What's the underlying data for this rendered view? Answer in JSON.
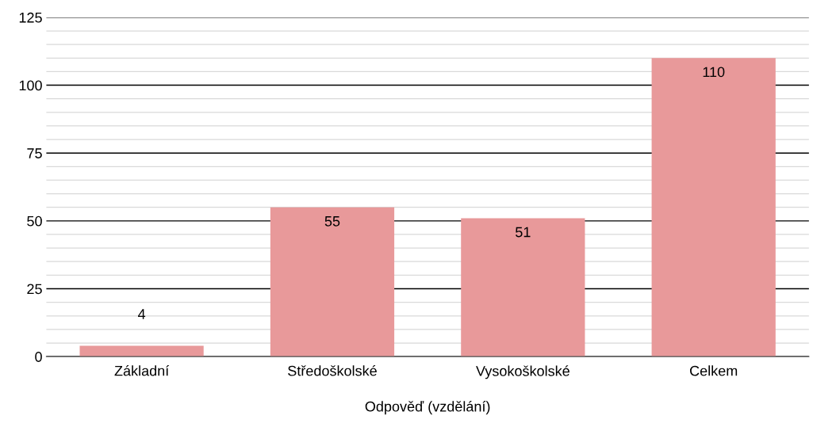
{
  "chart_data": {
    "type": "bar",
    "xlabel": "Odpověď (vzdělání)",
    "categories": [
      "Základní",
      "Středoškolské",
      "Vysokoškolské",
      "Celkem"
    ],
    "values": [
      4,
      55,
      51,
      110
    ],
    "color": "#e8999a",
    "data_labels": true,
    "ylim": [
      0,
      125
    ],
    "yticks": [
      0,
      {
        "value": 5,
        "label": null
      },
      {
        "value": 10,
        "label": null
      },
      {
        "value": 15,
        "label": null
      },
      {
        "value": 20,
        "label": null
      },
      25,
      {
        "value": 30,
        "label": null
      },
      {
        "value": 35,
        "label": null
      },
      {
        "value": 40,
        "label": null
      },
      {
        "value": 45,
        "label": null
      },
      50,
      {
        "value": 55,
        "label": null
      },
      {
        "value": 60,
        "label": null
      },
      {
        "value": 65,
        "label": null
      },
      {
        "value": 70,
        "label": null
      },
      75,
      {
        "value": 80,
        "label": null
      },
      {
        "value": 85,
        "label": null
      },
      {
        "value": 90,
        "label": null
      },
      {
        "value": 95,
        "label": null
      },
      100,
      {
        "value": 105,
        "label": null
      },
      {
        "value": 110,
        "label": null
      },
      {
        "value": 115,
        "label": null
      },
      {
        "value": 120,
        "label": null
      },
      125
    ],
    "grid": "y",
    "legend": false
  }
}
